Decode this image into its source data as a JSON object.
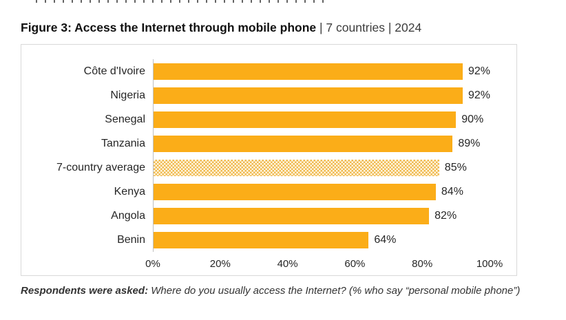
{
  "header": {
    "title": "Figure 3: Access the Internet through mobile phone",
    "meta": " | 7 countries | 2024"
  },
  "chart_data": {
    "type": "bar",
    "orientation": "horizontal",
    "title": "Access the Internet through mobile phone",
    "categories": [
      "Côte d'Ivoire",
      "Nigeria",
      "Senegal",
      "Tanzania",
      "7-country average",
      "Kenya",
      "Angola",
      "Benin"
    ],
    "values": [
      92,
      92,
      90,
      89,
      85,
      84,
      82,
      64
    ],
    "value_labels": [
      "92%",
      "92%",
      "90%",
      "89%",
      "85%",
      "84%",
      "82%",
      "64%"
    ],
    "xticks": [
      "0%",
      "20%",
      "40%",
      "60%",
      "80%",
      "100%"
    ],
    "xlim": [
      0,
      100
    ],
    "xlabel": "",
    "ylabel": "",
    "grid": false,
    "legend": "none",
    "highlight_category": "7-country average",
    "colors": {
      "bar": "#FBAD18",
      "highlight_pattern_dark": "#F0B94F",
      "highlight_pattern_light": "#FEF6E0",
      "axis_line": "#BFBFBF",
      "panel_border": "#D9D9D9",
      "text": "#262626"
    }
  },
  "caption": {
    "bold": "Respondents were asked:",
    "rest": " Where do you usually access the Internet? (% who say “personal mobile phone”)"
  }
}
